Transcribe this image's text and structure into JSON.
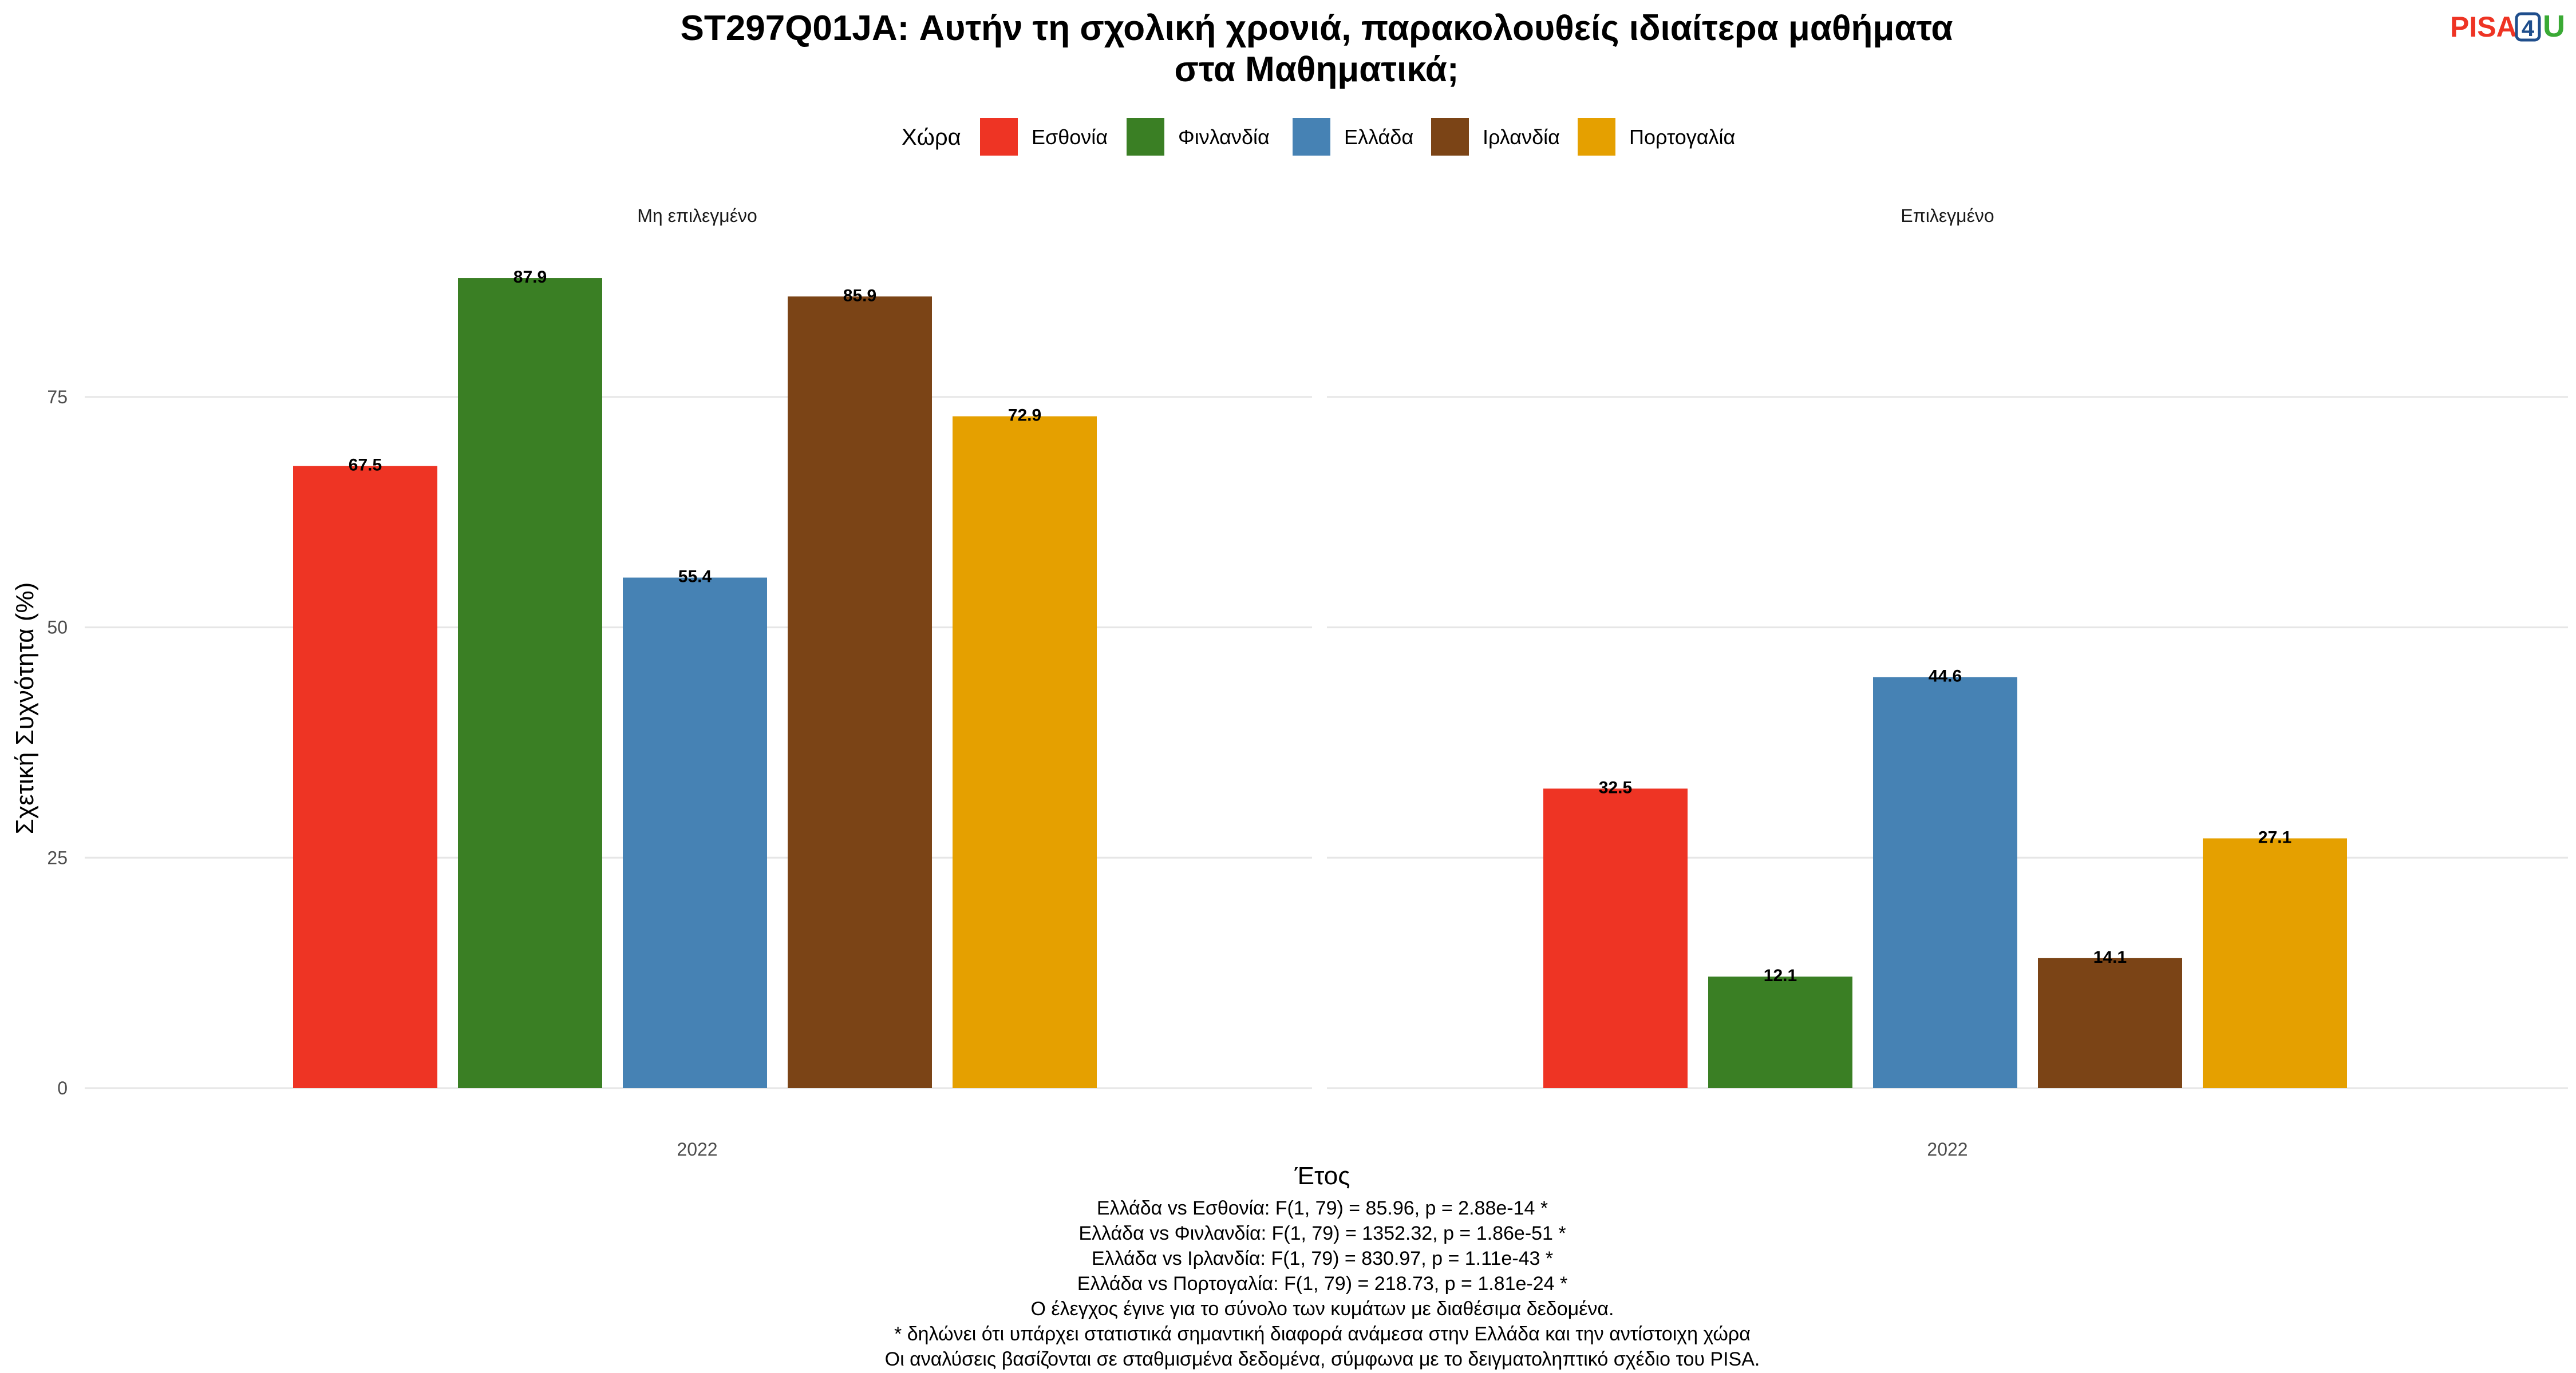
{
  "chart_data": {
    "type": "bar",
    "title": "ST297Q01JA: Αυτήν τη σχολική χρονιά, παρακολουθείς ιδιαίτερα μαθήματα στα Μαθηματικά;",
    "title_lines": [
      "ST297Q01JA: Αυτήν τη σχολική χρονιά, παρακολουθείς ιδιαίτερα μαθήματα",
      "στα Μαθηματικά;"
    ],
    "xlabel": "Έτος",
    "ylabel": "Σχετική Συχνότητα (%)",
    "ylim": [
      0,
      92
    ],
    "yticks": [
      0,
      25,
      50,
      75
    ],
    "grid": true,
    "legend": {
      "title": "Χώρα",
      "placement": "top",
      "entries": [
        "Εσθονία",
        "Φινλανδία",
        "Ελλάδα",
        "Ιρλανδία",
        "Πορτογαλία"
      ]
    },
    "colors": [
      "#EE3424",
      "#3A7F24",
      "#4682B4",
      "#7B4416",
      "#E5A000"
    ],
    "panels": [
      {
        "label": "Μη επιλεγμένο",
        "category": "2022",
        "series": [
          {
            "name": "Εσθονία",
            "value": 67.5,
            "label": "67.5"
          },
          {
            "name": "Φινλανδία",
            "value": 87.9,
            "label": "87.9"
          },
          {
            "name": "Ελλάδα",
            "value": 55.4,
            "label": "55.4"
          },
          {
            "name": "Ιρλανδία",
            "value": 85.9,
            "label": "85.9"
          },
          {
            "name": "Πορτογαλία",
            "value": 72.9,
            "label": "72.9"
          }
        ]
      },
      {
        "label": "Επιλεγμένο",
        "category": "2022",
        "series": [
          {
            "name": "Εσθονία",
            "value": 32.5,
            "label": "32.5"
          },
          {
            "name": "Φινλανδία",
            "value": 12.1,
            "label": "12.1"
          },
          {
            "name": "Ελλάδα",
            "value": 44.6,
            "label": "44.6"
          },
          {
            "name": "Ιρλανδία",
            "value": 14.1,
            "label": "14.1"
          },
          {
            "name": "Πορτογαλία",
            "value": 27.1,
            "label": "27.1"
          }
        ]
      }
    ],
    "caption": [
      "Ελλάδα vs Εσθονία: F(1, 79) = 85.96, p = 2.88e-14 *",
      "Ελλάδα vs Φινλανδία: F(1, 79) = 1352.32, p = 1.86e-51 *",
      "Ελλάδα vs Ιρλανδία: F(1, 79) = 830.97, p = 1.11e-43 *",
      "Ελλάδα vs Πορτογαλία: F(1, 79) = 218.73, p = 1.81e-24 *",
      "Ο έλεγχος έγινε για το σύνολο των κυμάτων με διαθέσιμα δεδομένα.",
      "* δηλώνει ότι υπάρχει στατιστικά σημαντική διαφορά ανάμεσα στην Ελλάδα και την αντίστοιχη χώρα",
      "Οι αναλύσεις βασίζονται σε σταθμισμένα δεδομένα, σύμφωνα με το δειγματοληπτικό σχέδιο του PISA."
    ]
  },
  "logo": {
    "text_left": "PISA",
    "text_mid": "4",
    "text_right": "U",
    "colors": {
      "left": "#EE3424",
      "mid": "#1F4E8C",
      "right": "#3AAA35"
    }
  }
}
